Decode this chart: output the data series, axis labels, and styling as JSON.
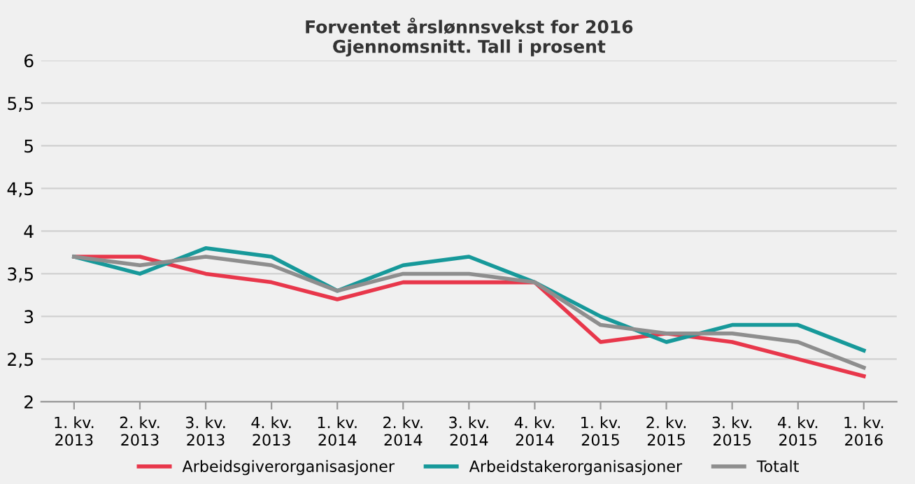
{
  "chart_data": {
    "type": "line",
    "title": "Forventet årslønnsvekst for 2016\nGjennomsnitt. Tall i prosent",
    "categories": [
      "1. kv.\n2013",
      "2. kv.\n2013",
      "3. kv.\n2013",
      "4. kv.\n2013",
      "1. kv.\n2014",
      "2. kv.\n2014",
      "3. kv.\n2014",
      "4. kv.\n2014",
      "1. kv.\n2015",
      "2. kv.\n2015",
      "3. kv.\n2015",
      "4. kv.\n2015",
      "1. kv.\n2016"
    ],
    "series": [
      {
        "name": "Arbeidsgiverorganisasjoner",
        "color": "#e8374b",
        "values": [
          3.7,
          3.7,
          3.5,
          3.4,
          3.2,
          3.4,
          3.4,
          3.4,
          2.7,
          2.8,
          2.7,
          2.5,
          2.3
        ]
      },
      {
        "name": "Arbeidstakerorganisasjoner",
        "color": "#17999a",
        "values": [
          3.7,
          3.5,
          3.8,
          3.7,
          3.3,
          3.6,
          3.7,
          3.4,
          3.0,
          2.7,
          2.9,
          2.9,
          2.6
        ]
      },
      {
        "name": "Totalt",
        "color": "#8e8e8e",
        "values": [
          3.7,
          3.6,
          3.7,
          3.6,
          3.3,
          3.5,
          3.5,
          3.4,
          2.9,
          2.8,
          2.8,
          2.7,
          2.4
        ]
      }
    ],
    "ylim": [
      2,
      6
    ],
    "yticks": [
      2,
      {
        "value": 2.5,
        "label": "2,5"
      },
      3,
      {
        "value": 3.5,
        "label": "3,5"
      },
      4,
      {
        "value": 4.5,
        "label": "4,5"
      },
      5,
      {
        "value": 5.5,
        "label": "5,5"
      },
      6
    ],
    "grid": "y",
    "legend": "bottom",
    "marker": "none",
    "line_style": "solid"
  }
}
